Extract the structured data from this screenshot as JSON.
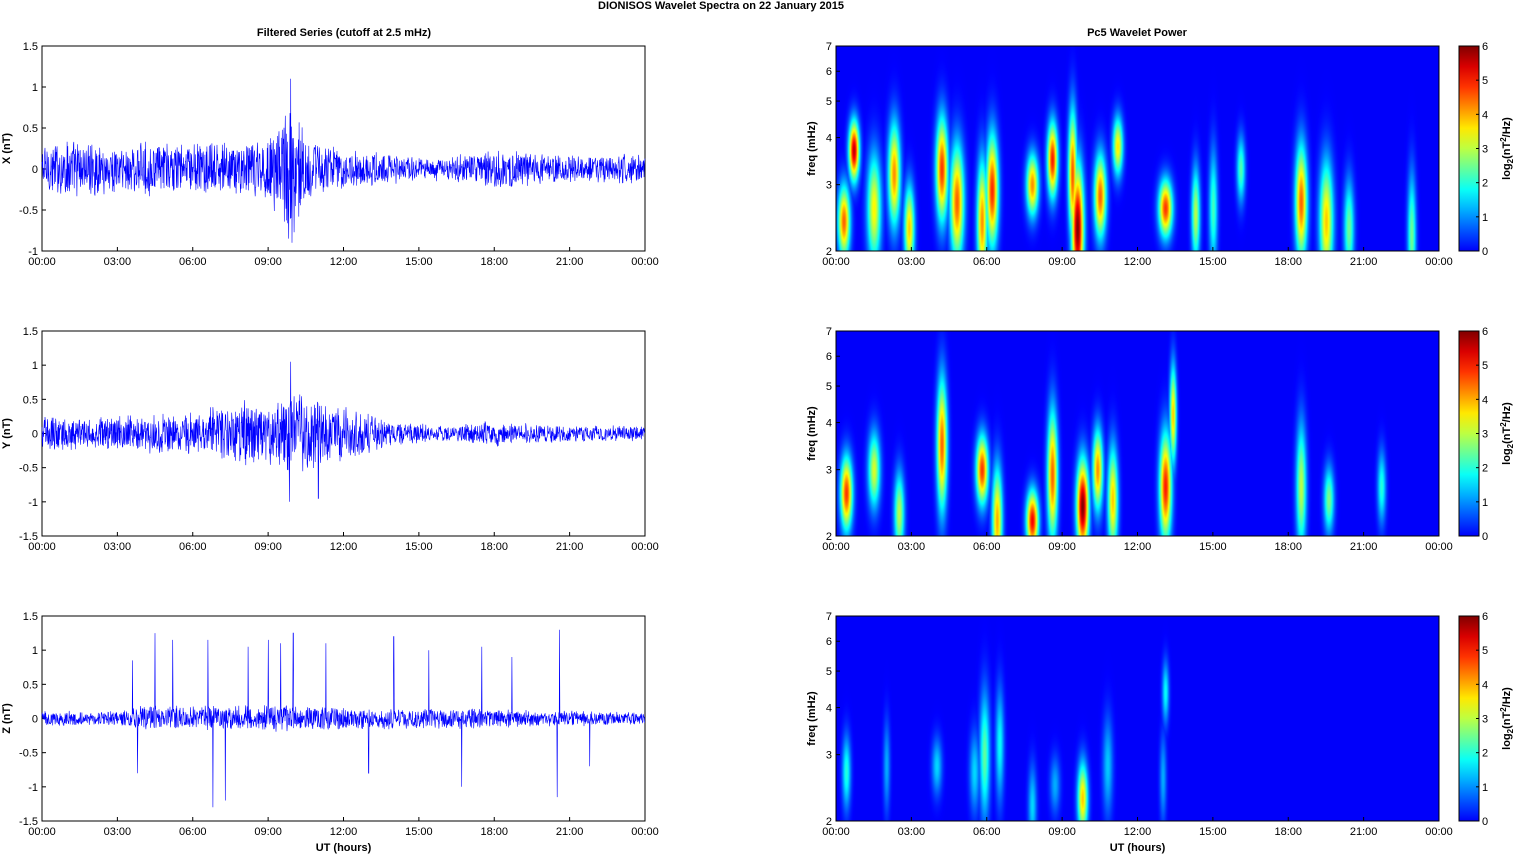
{
  "figure": {
    "suptitle": "DIONISOS Wavelet Spectra on 22 January   2015",
    "left_title": "Filtered Series (cutoff at 2.5 mHz)",
    "right_title": "Pc5 Wavelet Power",
    "xlabel": "UT (hours)"
  },
  "colors": {
    "trace": "#0000ff",
    "axes": "#000000",
    "background": "#ffffff"
  },
  "chart_data": [
    {
      "type": "line",
      "ylabel": "X (nT)",
      "ylim": [
        -1,
        1.5
      ],
      "yticks": [
        "-1",
        "-0.5",
        "0",
        "0.5",
        "1",
        "1.5"
      ],
      "xlim_hours": [
        0,
        24
      ],
      "xticks": [
        "00:00",
        "03:00",
        "06:00",
        "09:00",
        "12:00",
        "15:00",
        "18:00",
        "21:00",
        "00:00"
      ],
      "envelope": [
        {
          "t": 0,
          "amp": 0.35
        },
        {
          "t": 1,
          "amp": 0.4
        },
        {
          "t": 2,
          "amp": 0.35
        },
        {
          "t": 3,
          "amp": 0.3
        },
        {
          "t": 4,
          "amp": 0.35
        },
        {
          "t": 5,
          "amp": 0.35
        },
        {
          "t": 6,
          "amp": 0.35
        },
        {
          "t": 7,
          "amp": 0.35
        },
        {
          "t": 8,
          "amp": 0.35
        },
        {
          "t": 9,
          "amp": 0.45
        },
        {
          "t": 9.9,
          "amp": 0.95
        },
        {
          "t": 10.5,
          "amp": 0.45
        },
        {
          "t": 12,
          "amp": 0.25
        },
        {
          "t": 14,
          "amp": 0.2
        },
        {
          "t": 16,
          "amp": 0.15
        },
        {
          "t": 18,
          "amp": 0.25
        },
        {
          "t": 20,
          "amp": 0.2
        },
        {
          "t": 22,
          "amp": 0.18
        },
        {
          "t": 24,
          "amp": 0.2
        }
      ],
      "peaks": [
        {
          "t": 9.9,
          "value": 1.1
        },
        {
          "t": 9.95,
          "value": -0.9
        }
      ]
    },
    {
      "type": "line",
      "ylabel": "Y (nT)",
      "ylim": [
        -1.5,
        1.5
      ],
      "yticks": [
        "-1.5",
        "-1",
        "-0.5",
        "0",
        "0.5",
        "1",
        "1.5"
      ],
      "xlim_hours": [
        0,
        24
      ],
      "xticks": [
        "00:00",
        "03:00",
        "06:00",
        "09:00",
        "12:00",
        "15:00",
        "18:00",
        "21:00",
        "00:00"
      ],
      "envelope": [
        {
          "t": 0,
          "amp": 0.3
        },
        {
          "t": 2,
          "amp": 0.25
        },
        {
          "t": 4,
          "amp": 0.3
        },
        {
          "t": 6,
          "amp": 0.35
        },
        {
          "t": 8,
          "amp": 0.5
        },
        {
          "t": 9,
          "amp": 0.5
        },
        {
          "t": 10,
          "amp": 0.7
        },
        {
          "t": 11,
          "amp": 0.5
        },
        {
          "t": 13,
          "amp": 0.35
        },
        {
          "t": 14,
          "amp": 0.2
        },
        {
          "t": 16,
          "amp": 0.12
        },
        {
          "t": 18,
          "amp": 0.2
        },
        {
          "t": 20,
          "amp": 0.15
        },
        {
          "t": 22,
          "amp": 0.12
        },
        {
          "t": 24,
          "amp": 0.12
        }
      ],
      "peaks": [
        {
          "t": 9.9,
          "value": 1.05
        },
        {
          "t": 9.85,
          "value": -1.0
        },
        {
          "t": 11,
          "value": -0.95
        }
      ]
    },
    {
      "type": "line",
      "ylabel": "Z (nT)",
      "ylim": [
        -1.5,
        1.5
      ],
      "yticks": [
        "-1.5",
        "-1",
        "-0.5",
        "0",
        "0.5",
        "1",
        "1.5"
      ],
      "xlabel": "UT (hours)",
      "xlim_hours": [
        0,
        24
      ],
      "xticks": [
        "00:00",
        "03:00",
        "06:00",
        "09:00",
        "12:00",
        "15:00",
        "18:00",
        "21:00",
        "00:00"
      ],
      "envelope": [
        {
          "t": 0,
          "amp": 0.12
        },
        {
          "t": 3,
          "amp": 0.12
        },
        {
          "t": 4,
          "amp": 0.2
        },
        {
          "t": 6,
          "amp": 0.2
        },
        {
          "t": 9,
          "amp": 0.22
        },
        {
          "t": 12,
          "amp": 0.18
        },
        {
          "t": 15,
          "amp": 0.16
        },
        {
          "t": 18,
          "amp": 0.15
        },
        {
          "t": 21,
          "amp": 0.12
        },
        {
          "t": 24,
          "amp": 0.1
        }
      ],
      "spikes": [
        {
          "t": 3.6,
          "v": 0.85
        },
        {
          "t": 3.8,
          "v": -0.8
        },
        {
          "t": 4.5,
          "v": 1.25
        },
        {
          "t": 5.2,
          "v": 1.15
        },
        {
          "t": 6.6,
          "v": 1.15
        },
        {
          "t": 6.8,
          "v": -1.3
        },
        {
          "t": 7.3,
          "v": -1.2
        },
        {
          "t": 8.2,
          "v": 1.05
        },
        {
          "t": 9.0,
          "v": 1.15
        },
        {
          "t": 9.5,
          "v": 1.1
        },
        {
          "t": 10.0,
          "v": 1.25
        },
        {
          "t": 11.3,
          "v": 1.1
        },
        {
          "t": 13.0,
          "v": -0.8
        },
        {
          "t": 14.0,
          "v": 1.2
        },
        {
          "t": 15.4,
          "v": 1.0
        },
        {
          "t": 16.7,
          "v": -1.0
        },
        {
          "t": 17.5,
          "v": 1.05
        },
        {
          "t": 18.7,
          "v": 0.9
        },
        {
          "t": 20.6,
          "v": 1.3
        },
        {
          "t": 20.5,
          "v": -1.15
        },
        {
          "t": 21.8,
          "v": -0.7
        }
      ]
    },
    {
      "type": "heatmap",
      "ylabel": "freq (mHz)",
      "yscale": "log",
      "ylim": [
        2,
        7
      ],
      "yticks": [
        "2",
        "3",
        "4",
        "5",
        "6",
        "7"
      ],
      "xlim_hours": [
        0,
        24
      ],
      "xticks": [
        "00:00",
        "03:00",
        "06:00",
        "09:00",
        "12:00",
        "15:00",
        "18:00",
        "21:00",
        "00:00"
      ],
      "colorbar": {
        "label": "log2(nT2/Hz)",
        "range": [
          0,
          6
        ],
        "ticks": [
          "0",
          "1",
          "2",
          "3",
          "4",
          "5",
          "6"
        ]
      },
      "blobs": [
        {
          "t": 0.3,
          "f": 2.4,
          "v": 4.5,
          "w": 0.35
        },
        {
          "t": 0.7,
          "f": 3.7,
          "v": 5.6,
          "w": 0.3
        },
        {
          "t": 1.5,
          "f": 2.6,
          "v": 3.5,
          "w": 0.4
        },
        {
          "t": 2.3,
          "f": 3.2,
          "v": 4.2,
          "w": 0.35
        },
        {
          "t": 2.9,
          "f": 2.3,
          "v": 3.8,
          "w": 0.3
        },
        {
          "t": 4.2,
          "f": 3.3,
          "v": 4.8,
          "w": 0.35
        },
        {
          "t": 4.8,
          "f": 2.7,
          "v": 4.5,
          "w": 0.4
        },
        {
          "t": 5.8,
          "f": 2.4,
          "v": 4.2,
          "w": 0.3
        },
        {
          "t": 6.2,
          "f": 2.9,
          "v": 4.9,
          "w": 0.35
        },
        {
          "t": 7.8,
          "f": 3.0,
          "v": 4.2,
          "w": 0.35
        },
        {
          "t": 8.6,
          "f": 3.5,
          "v": 5.0,
          "w": 0.3
        },
        {
          "t": 9.6,
          "f": 2.3,
          "v": 6.0,
          "w": 0.35
        },
        {
          "t": 9.4,
          "f": 3.2,
          "v": 4.6,
          "w": 0.25
        },
        {
          "t": 10.5,
          "f": 2.8,
          "v": 4.5,
          "w": 0.35
        },
        {
          "t": 11.2,
          "f": 3.8,
          "v": 3.6,
          "w": 0.3
        },
        {
          "t": 13.1,
          "f": 2.6,
          "v": 4.8,
          "w": 0.4
        },
        {
          "t": 14.3,
          "f": 2.5,
          "v": 3.0,
          "w": 0.25
        },
        {
          "t": 15.0,
          "f": 2.6,
          "v": 2.2,
          "w": 0.25
        },
        {
          "t": 16.1,
          "f": 3.3,
          "v": 2.3,
          "w": 0.25
        },
        {
          "t": 18.5,
          "f": 2.7,
          "v": 4.5,
          "w": 0.35
        },
        {
          "t": 19.5,
          "f": 2.4,
          "v": 3.8,
          "w": 0.4
        },
        {
          "t": 20.4,
          "f": 2.3,
          "v": 2.5,
          "w": 0.3
        },
        {
          "t": 22.9,
          "f": 2.2,
          "v": 2.5,
          "w": 0.25
        }
      ]
    },
    {
      "type": "heatmap",
      "ylabel": "freq (mHz)",
      "yscale": "log",
      "ylim": [
        2,
        7
      ],
      "yticks": [
        "2",
        "3",
        "4",
        "5",
        "6",
        "7"
      ],
      "xlim_hours": [
        0,
        24
      ],
      "xticks": [
        "00:00",
        "03:00",
        "06:00",
        "09:00",
        "12:00",
        "15:00",
        "18:00",
        "21:00",
        "00:00"
      ],
      "colorbar": {
        "label": "log2(nT2/Hz)",
        "range": [
          0,
          6
        ],
        "ticks": [
          "0",
          "1",
          "2",
          "3",
          "4",
          "5",
          "6"
        ]
      },
      "blobs": [
        {
          "t": 0.4,
          "f": 2.6,
          "v": 4.8,
          "w": 0.35
        },
        {
          "t": 1.5,
          "f": 3.0,
          "v": 3.2,
          "w": 0.35
        },
        {
          "t": 2.5,
          "f": 2.3,
          "v": 3.0,
          "w": 0.3
        },
        {
          "t": 4.2,
          "f": 3.5,
          "v": 4.5,
          "w": 0.3
        },
        {
          "t": 5.8,
          "f": 3.0,
          "v": 4.8,
          "w": 0.35
        },
        {
          "t": 6.4,
          "f": 2.2,
          "v": 4.0,
          "w": 0.3
        },
        {
          "t": 7.8,
          "f": 2.2,
          "v": 5.2,
          "w": 0.35
        },
        {
          "t": 8.6,
          "f": 2.9,
          "v": 4.5,
          "w": 0.3
        },
        {
          "t": 9.8,
          "f": 2.4,
          "v": 6.0,
          "w": 0.35
        },
        {
          "t": 10.4,
          "f": 3.0,
          "v": 4.2,
          "w": 0.3
        },
        {
          "t": 11.0,
          "f": 2.5,
          "v": 3.8,
          "w": 0.3
        },
        {
          "t": 13.1,
          "f": 2.7,
          "v": 5.0,
          "w": 0.35
        },
        {
          "t": 13.4,
          "f": 4.2,
          "v": 3.8,
          "w": 0.2
        },
        {
          "t": 18.5,
          "f": 2.7,
          "v": 3.0,
          "w": 0.3
        },
        {
          "t": 19.6,
          "f": 2.5,
          "v": 2.6,
          "w": 0.3
        },
        {
          "t": 21.7,
          "f": 2.7,
          "v": 2.0,
          "w": 0.25
        }
      ]
    },
    {
      "type": "heatmap",
      "ylabel": "freq (mHz)",
      "yscale": "log",
      "ylim": [
        2,
        7
      ],
      "yticks": [
        "2",
        "3",
        "4",
        "5",
        "6",
        "7"
      ],
      "xlabel": "UT (hours)",
      "xlim_hours": [
        0,
        24
      ],
      "xticks": [
        "00:00",
        "03:00",
        "06:00",
        "09:00",
        "12:00",
        "15:00",
        "18:00",
        "21:00",
        "00:00"
      ],
      "colorbar": {
        "label": "log2(nT2/Hz)",
        "range": [
          0,
          6
        ],
        "ticks": [
          "0",
          "1",
          "2",
          "3",
          "4",
          "5",
          "6"
        ]
      },
      "blobs": [
        {
          "t": 0.4,
          "f": 2.7,
          "v": 2.0,
          "w": 0.25
        },
        {
          "t": 2.0,
          "f": 2.8,
          "v": 1.2,
          "w": 0.2
        },
        {
          "t": 4.0,
          "f": 2.8,
          "v": 1.5,
          "w": 0.3
        },
        {
          "t": 5.5,
          "f": 2.7,
          "v": 1.5,
          "w": 0.3
        },
        {
          "t": 5.9,
          "f": 3.0,
          "v": 2.4,
          "w": 0.3
        },
        {
          "t": 6.5,
          "f": 3.2,
          "v": 1.8,
          "w": 0.25
        },
        {
          "t": 7.8,
          "f": 2.2,
          "v": 1.5,
          "w": 0.25
        },
        {
          "t": 8.7,
          "f": 2.5,
          "v": 1.2,
          "w": 0.3
        },
        {
          "t": 9.8,
          "f": 2.3,
          "v": 3.8,
          "w": 0.3
        },
        {
          "t": 10.8,
          "f": 2.8,
          "v": 1.4,
          "w": 0.3
        },
        {
          "t": 13.1,
          "f": 4.4,
          "v": 1.8,
          "w": 0.2
        },
        {
          "t": 13.0,
          "f": 2.6,
          "v": 1.2,
          "w": 0.2
        }
      ]
    }
  ]
}
